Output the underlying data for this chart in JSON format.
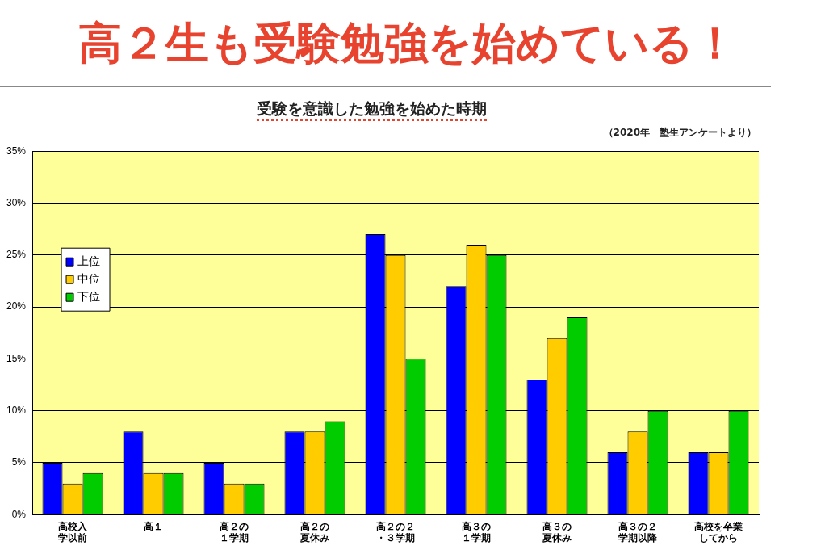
{
  "chart_data": {
    "type": "bar",
    "title": "高２生も受験勉強を始めている！",
    "subtitle": "受験を意識した勉強を始めた時期",
    "annotations": [
      "（2020年　塾生アンケートより）"
    ],
    "categories": [
      "高校入学以前",
      "高１",
      "高２の１学期",
      "高２の夏休み",
      "高２の２・３学期",
      "高３の１学期",
      "高３の夏休み",
      "高３の２学期以降",
      "高校を卒業してから"
    ],
    "series": [
      {
        "name": "上位",
        "color": "#0000ff",
        "values": [
          5,
          8,
          5,
          8,
          27,
          22,
          13,
          6,
          6
        ]
      },
      {
        "name": "中位",
        "color": "#ffcc00",
        "values": [
          3,
          4,
          3,
          8,
          25,
          26,
          17,
          8,
          6
        ]
      },
      {
        "name": "下位",
        "color": "#00cc00",
        "values": [
          4,
          4,
          3,
          9,
          15,
          25,
          19,
          10,
          10
        ]
      }
    ],
    "ylim": [
      0,
      35
    ],
    "yticks": [
      {
        "value": 0,
        "label": "0%"
      },
      {
        "value": 5,
        "label": "5%"
      },
      {
        "value": 10,
        "label": "10%"
      },
      {
        "value": 15,
        "label": "15%"
      },
      {
        "value": 20,
        "label": "20%"
      },
      {
        "value": 25,
        "label": "25%"
      },
      {
        "value": 30,
        "label": "30%"
      },
      {
        "value": 35,
        "label": "35%"
      }
    ],
    "grid": "y",
    "legend": "left"
  }
}
